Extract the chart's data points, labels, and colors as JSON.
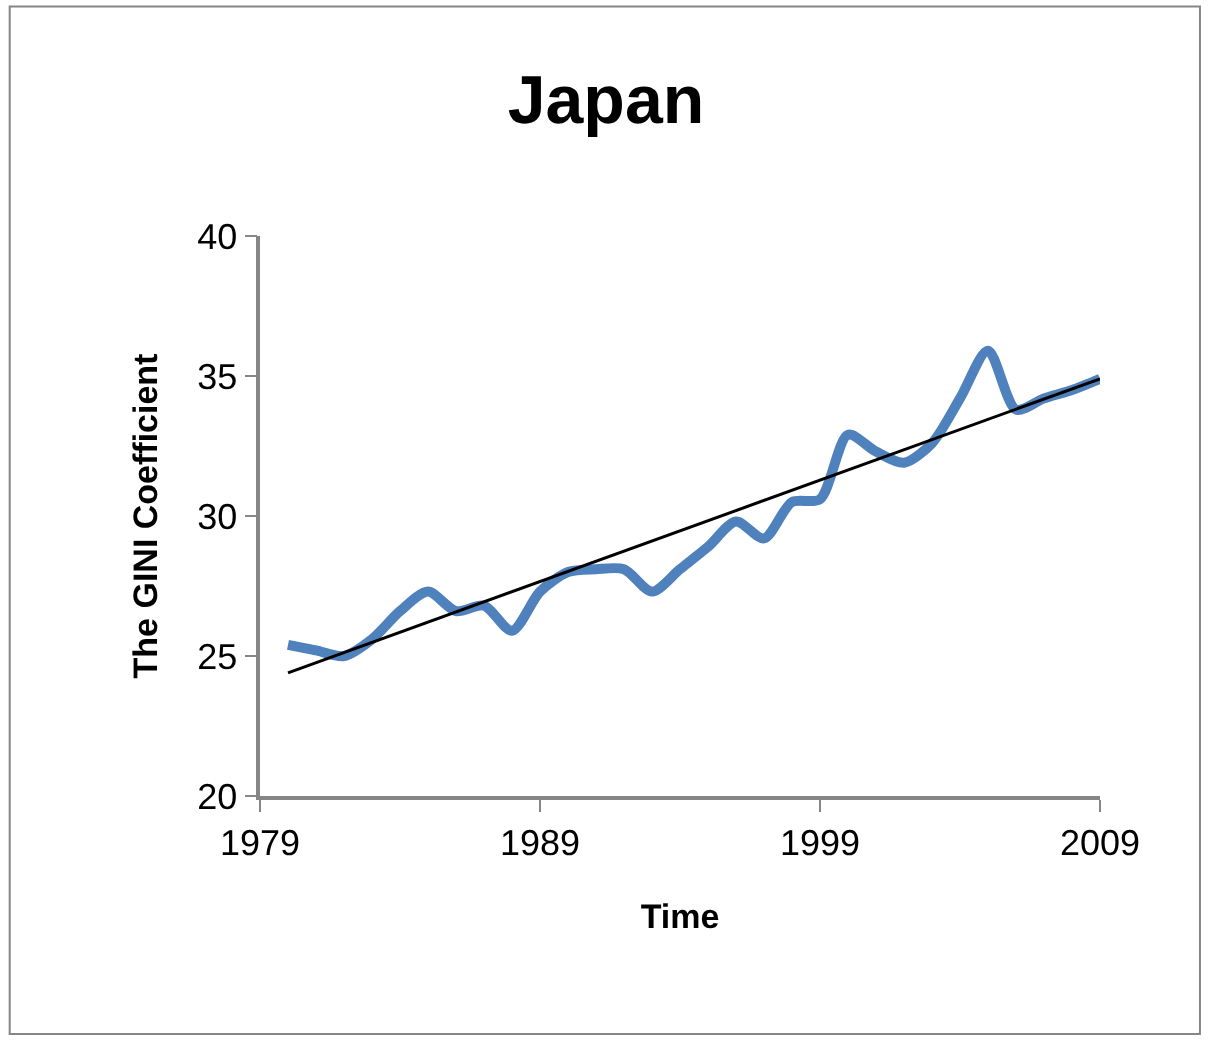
{
  "chart_data": {
    "type": "line",
    "title": "Japan",
    "xlabel": "Time",
    "ylabel": "The GINI Coefficient",
    "x": [
      1980,
      1981,
      1982,
      1983,
      1984,
      1985,
      1986,
      1987,
      1988,
      1989,
      1990,
      1991,
      1992,
      1993,
      1994,
      1995,
      1996,
      1997,
      1998,
      1999,
      2000,
      2001,
      2002,
      2003,
      2004,
      2005,
      2006,
      2007,
      2008,
      2009
    ],
    "series": [
      {
        "color": "#4f81bd",
        "values": [
          25.4,
          25.2,
          25.0,
          25.6,
          26.6,
          27.3,
          26.6,
          26.8,
          25.9,
          27.3,
          28.0,
          28.1,
          28.1,
          27.3,
          28.1,
          28.9,
          29.8,
          29.2,
          30.5,
          30.6,
          32.9,
          32.3,
          31.9,
          32.6,
          34.2,
          35.9,
          33.8,
          34.2,
          34.5,
          34.9
        ]
      },
      {
        "type": "line",
        "color": "#000000",
        "x": [
          1980,
          2009
        ],
        "values": [
          24.4,
          34.9
        ]
      }
    ],
    "xlim": [
      1979,
      2009
    ],
    "xticks": [
      1979,
      1989,
      1999,
      2009
    ],
    "ylim": [
      20,
      40
    ],
    "yticks": [
      20,
      25,
      30,
      35,
      40
    ],
    "marker": "none",
    "line_style": "solid"
  }
}
